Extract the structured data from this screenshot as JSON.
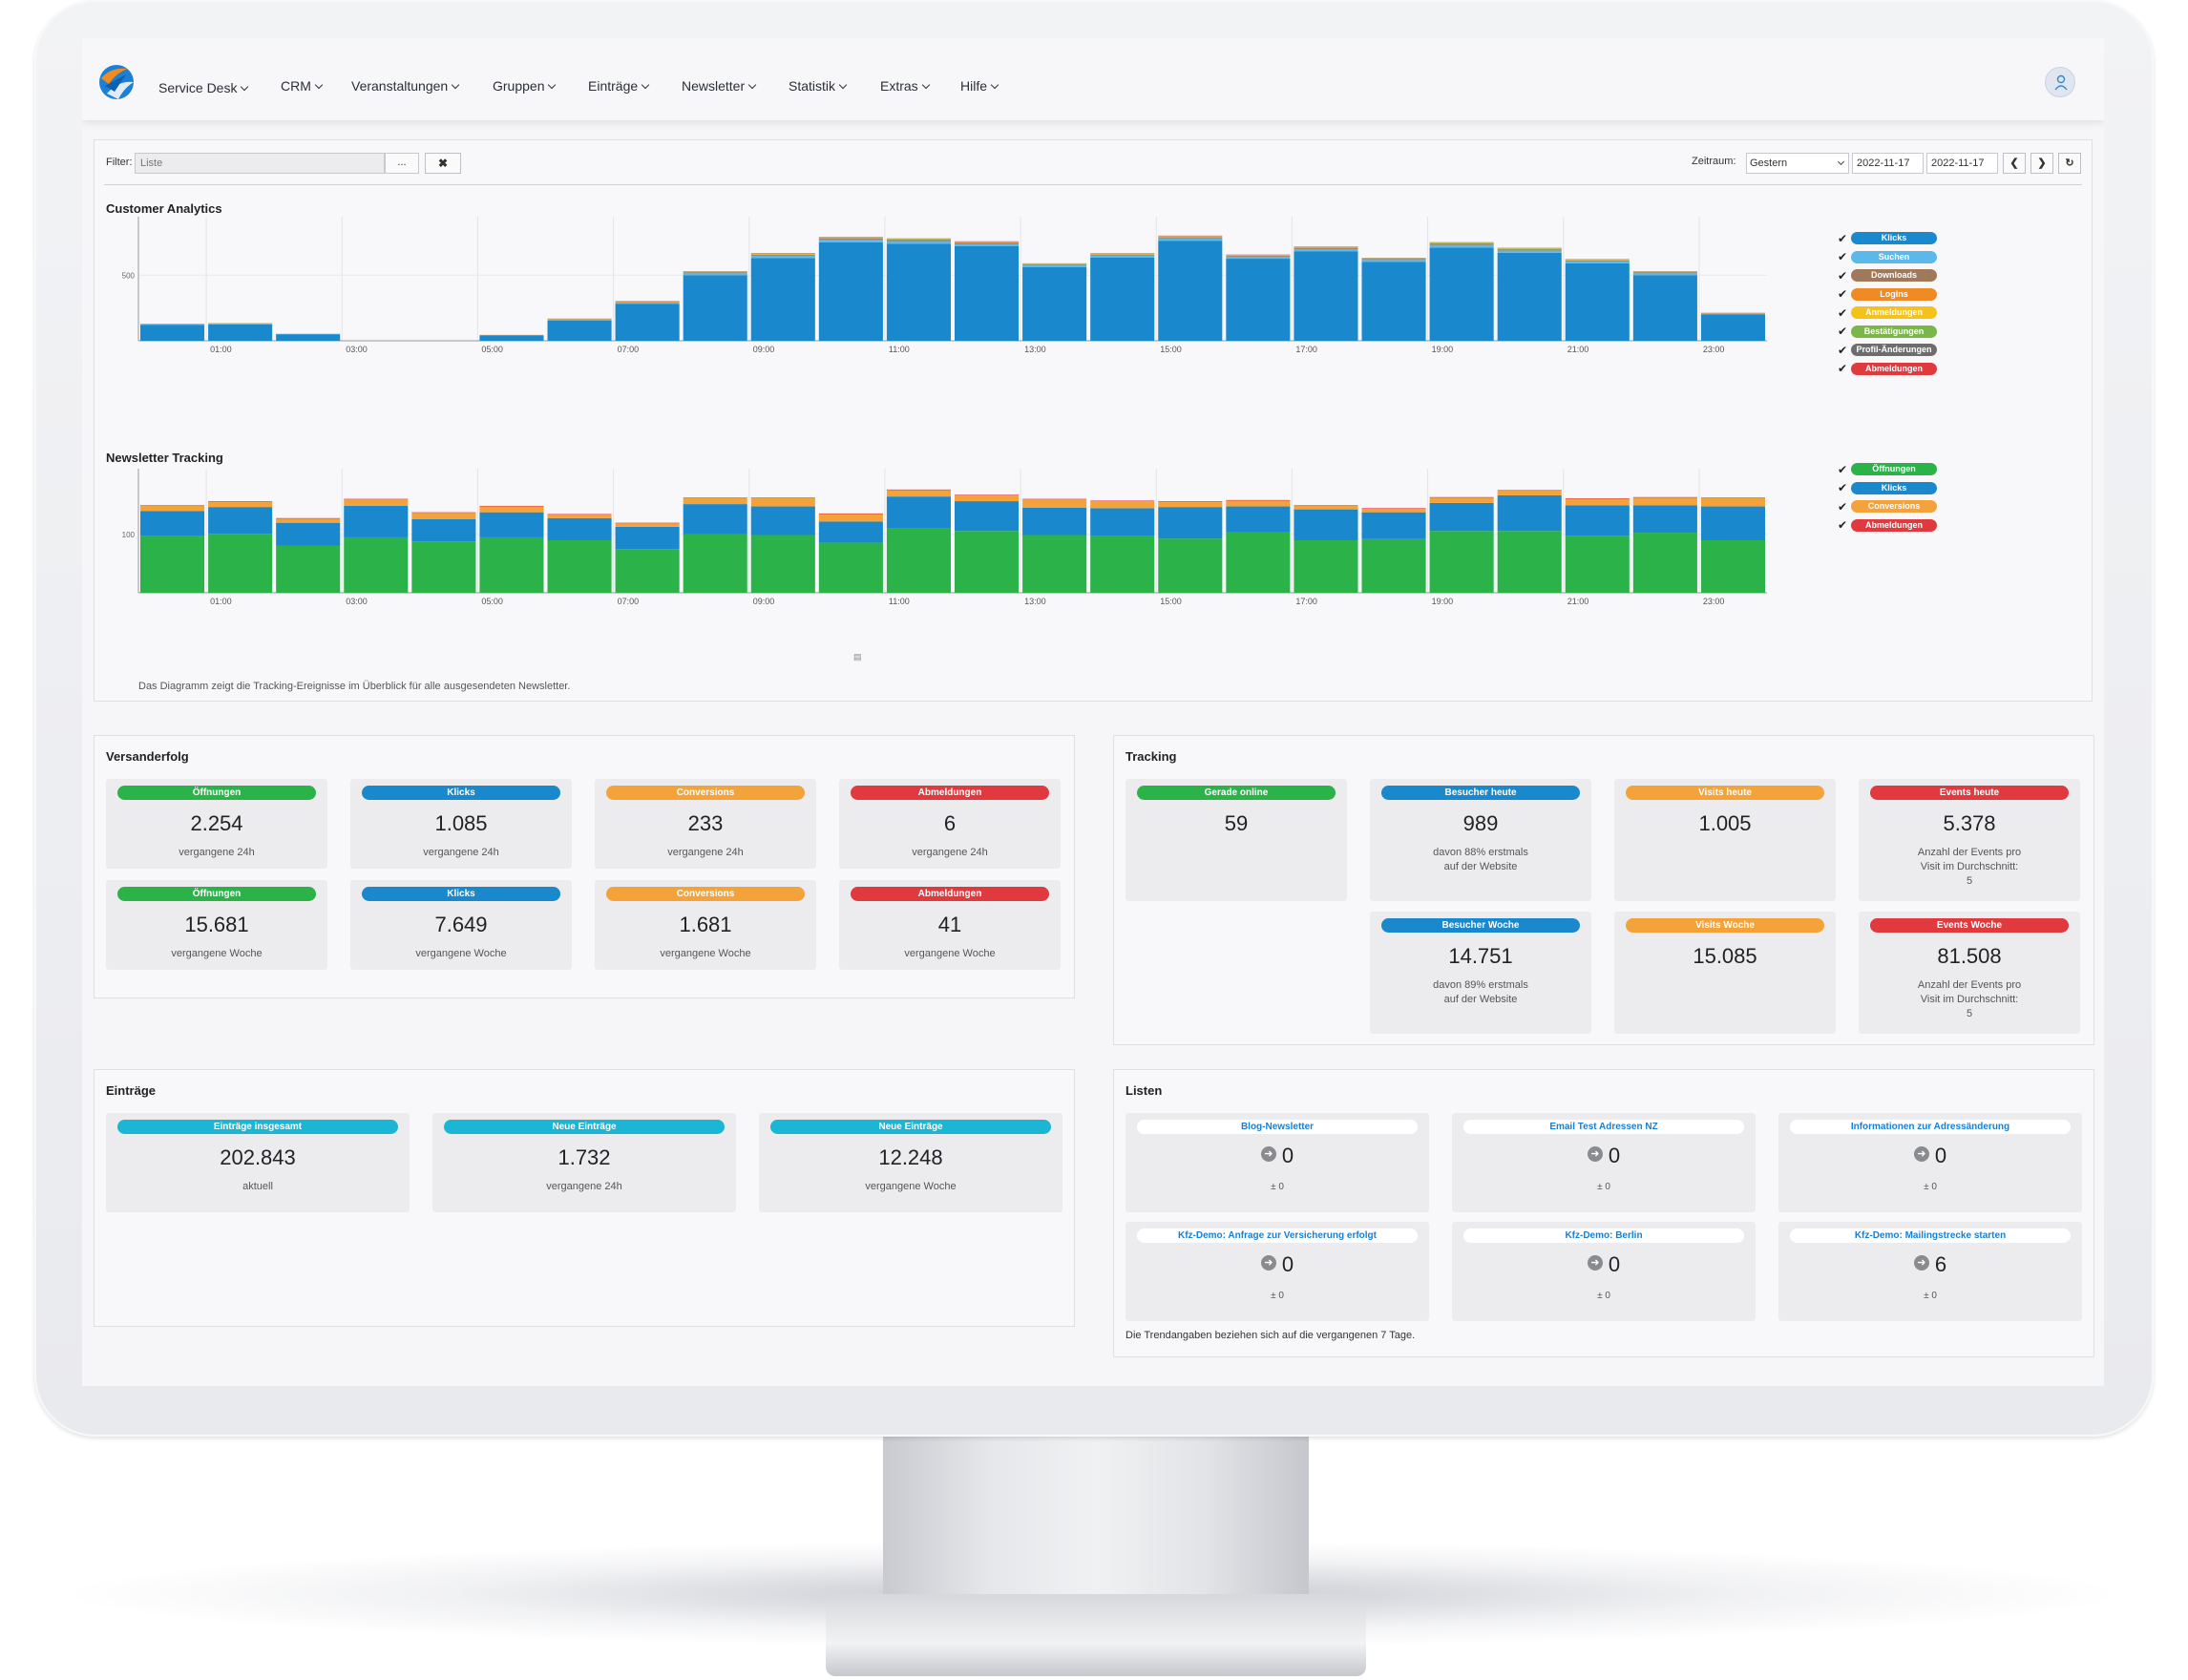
{
  "nav": {
    "items": [
      "Service Desk",
      "CRM",
      "Veranstaltungen",
      "Gruppen",
      "Einträge",
      "Newsletter",
      "Statistik",
      "Extras",
      "Hilfe"
    ]
  },
  "filter": {
    "label": "Filter:",
    "placeholder": "Liste",
    "more_label": "...",
    "clear_label": "✖",
    "zeitraum_label": "Zeitraum:",
    "zeitraum_value": "Gestern",
    "date_from": "2022-11-17",
    "date_to": "2022-11-17"
  },
  "customer_analytics": {
    "title": "Customer Analytics"
  },
  "newsletter_tracking": {
    "title": "Newsletter Tracking",
    "note": "Das Diagramm zeigt die Tracking-Ereignisse im Überblick für alle ausgesendeten Newsletter."
  },
  "chart_data": [
    {
      "type": "bar",
      "stacked": true,
      "title": "Customer Analytics",
      "categories": [
        "00:00",
        "01:00",
        "02:00",
        "03:00",
        "04:00",
        "05:00",
        "06:00",
        "07:00",
        "08:00",
        "09:00",
        "10:00",
        "11:00",
        "12:00",
        "13:00",
        "14:00",
        "15:00",
        "16:00",
        "17:00",
        "18:00",
        "19:00",
        "20:00",
        "21:00",
        "22:00",
        "23:00"
      ],
      "x_tick_labels": [
        "01:00",
        "03:00",
        "05:00",
        "07:00",
        "09:00",
        "11:00",
        "13:00",
        "15:00",
        "17:00",
        "19:00",
        "21:00",
        "23:00"
      ],
      "y_tick_labels": [
        "500"
      ],
      "ylim": [
        0,
        800
      ],
      "grid": true,
      "legend_position": "right",
      "series": [
        {
          "name": "Klicks",
          "color": "#1a88cc",
          "values": [
            120,
            125,
            50,
            0,
            0,
            40,
            155,
            280,
            500,
            630,
            750,
            740,
            720,
            560,
            635,
            760,
            625,
            680,
            600,
            710,
            670,
            590,
            500,
            200
          ]
        },
        {
          "name": "Suchen",
          "color": "#5ab8ea",
          "values": [
            4,
            4,
            2,
            0,
            0,
            3,
            6,
            10,
            14,
            18,
            20,
            20,
            18,
            14,
            16,
            20,
            16,
            18,
            16,
            20,
            18,
            16,
            14,
            6
          ]
        },
        {
          "name": "Downloads",
          "color": "#a0785a",
          "values": [
            2,
            2,
            1,
            0,
            0,
            1,
            3,
            4,
            6,
            7,
            8,
            7,
            7,
            6,
            6,
            8,
            6,
            7,
            6,
            8,
            7,
            6,
            6,
            3
          ]
        },
        {
          "name": "Logins",
          "color": "#f08a24",
          "values": [
            1,
            1,
            0,
            0,
            0,
            1,
            2,
            3,
            3,
            4,
            4,
            4,
            4,
            3,
            3,
            4,
            3,
            4,
            3,
            4,
            4,
            3,
            3,
            2
          ]
        },
        {
          "name": "Anmeldungen",
          "color": "#f4c21b",
          "values": [
            1,
            1,
            0,
            0,
            0,
            0,
            1,
            2,
            2,
            3,
            3,
            3,
            3,
            2,
            2,
            3,
            2,
            3,
            2,
            3,
            3,
            2,
            2,
            1
          ]
        },
        {
          "name": "Bestätigungen",
          "color": "#7ab648",
          "values": [
            1,
            1,
            0,
            0,
            0,
            0,
            1,
            2,
            2,
            3,
            3,
            3,
            3,
            2,
            2,
            3,
            2,
            3,
            2,
            3,
            3,
            2,
            2,
            1
          ]
        },
        {
          "name": "Profil-Änderungen",
          "color": "#6d6d6d",
          "values": [
            1,
            1,
            0,
            0,
            0,
            0,
            1,
            1,
            2,
            2,
            2,
            2,
            2,
            2,
            2,
            2,
            2,
            2,
            2,
            2,
            2,
            2,
            2,
            1
          ]
        },
        {
          "name": "Abmeldungen",
          "color": "#e0393e",
          "values": [
            0,
            0,
            0,
            0,
            0,
            0,
            0,
            1,
            1,
            1,
            1,
            1,
            1,
            1,
            1,
            1,
            1,
            1,
            1,
            1,
            1,
            1,
            1,
            0
          ]
        }
      ]
    },
    {
      "type": "bar",
      "stacked": true,
      "title": "Newsletter Tracking",
      "categories": [
        "00:00",
        "01:00",
        "02:00",
        "03:00",
        "04:00",
        "05:00",
        "06:00",
        "07:00",
        "08:00",
        "09:00",
        "10:00",
        "11:00",
        "12:00",
        "13:00",
        "14:00",
        "15:00",
        "16:00",
        "17:00",
        "18:00",
        "19:00",
        "20:00",
        "21:00",
        "22:00",
        "23:00"
      ],
      "x_tick_labels": [
        "01:00",
        "03:00",
        "05:00",
        "07:00",
        "09:00",
        "11:00",
        "13:00",
        "15:00",
        "17:00",
        "19:00",
        "21:00",
        "23:00"
      ],
      "y_tick_labels": [
        "100"
      ],
      "ylim": [
        0,
        180
      ],
      "grid": true,
      "legend_position": "right",
      "series": [
        {
          "name": "Öffnungen",
          "color": "#2bb34a",
          "values": [
            97,
            101,
            81,
            95,
            88,
            95,
            90,
            75,
            100,
            99,
            86,
            110,
            106,
            99,
            97,
            93,
            104,
            90,
            92,
            106,
            106,
            98,
            103,
            90
          ]
        },
        {
          "name": "Klicks",
          "color": "#1a88cc",
          "values": [
            43,
            46,
            39,
            54,
            38,
            43,
            38,
            38,
            52,
            49,
            36,
            55,
            51,
            47,
            48,
            54,
            44,
            53,
            46,
            48,
            61,
            52,
            47,
            58
          ]
        },
        {
          "name": "Conversions",
          "color": "#f4a23a",
          "values": [
            9,
            9,
            7,
            11,
            11,
            10,
            6,
            6,
            10,
            14,
            13,
            11,
            10,
            14,
            12,
            9,
            10,
            6,
            6,
            9,
            8,
            11,
            13,
            14
          ]
        },
        {
          "name": "Abmeldungen",
          "color": "#e0393e",
          "values": [
            1,
            1,
            1,
            1,
            1,
            1,
            1,
            1,
            1,
            1,
            1,
            1,
            1,
            1,
            1,
            1,
            1,
            1,
            1,
            1,
            1,
            1,
            1,
            1
          ]
        }
      ]
    }
  ],
  "versanderfolg": {
    "title": "Versanderfolg",
    "cards": [
      {
        "label": "Öffnungen",
        "color": "#2bb34a",
        "value": "2.254",
        "sub": "vergangene 24h"
      },
      {
        "label": "Klicks",
        "color": "#1a88cc",
        "value": "1.085",
        "sub": "vergangene 24h"
      },
      {
        "label": "Conversions",
        "color": "#f4a23a",
        "value": "233",
        "sub": "vergangene 24h"
      },
      {
        "label": "Abmeldungen",
        "color": "#e0393e",
        "value": "6",
        "sub": "vergangene 24h"
      },
      {
        "label": "Öffnungen",
        "color": "#2bb34a",
        "value": "15.681",
        "sub": "vergangene Woche"
      },
      {
        "label": "Klicks",
        "color": "#1a88cc",
        "value": "7.649",
        "sub": "vergangene Woche"
      },
      {
        "label": "Conversions",
        "color": "#f4a23a",
        "value": "1.681",
        "sub": "vergangene Woche"
      },
      {
        "label": "Abmeldungen",
        "color": "#e0393e",
        "value": "41",
        "sub": "vergangene Woche"
      }
    ]
  },
  "tracking": {
    "title": "Tracking",
    "cards": [
      {
        "label": "Gerade online",
        "color": "#2bb34a",
        "value": "59",
        "sub": ""
      },
      {
        "label": "Besucher heute",
        "color": "#1a88cc",
        "value": "989",
        "sub": "davon 88% erstmals\nauf der Website"
      },
      {
        "label": "Visits heute",
        "color": "#f4a23a",
        "value": "1.005",
        "sub": ""
      },
      {
        "label": "Events heute",
        "color": "#e0393e",
        "value": "5.378",
        "sub": "Anzahl der Events pro\nVisit im Durchschnitt:\n5"
      },
      {
        "label": "Besucher Woche",
        "color": "#1a88cc",
        "value": "14.751",
        "sub": "davon 89% erstmals\nauf der Website"
      },
      {
        "label": "Visits Woche",
        "color": "#f4a23a",
        "value": "15.085",
        "sub": ""
      },
      {
        "label": "Events Woche",
        "color": "#e0393e",
        "value": "81.508",
        "sub": "Anzahl der Events pro\nVisit im Durchschnitt:\n5"
      }
    ]
  },
  "eintraege": {
    "title": "Einträge",
    "cards": [
      {
        "label": "Einträge insgesamt",
        "color": "#1ab6d3",
        "value": "202.843",
        "sub": "aktuell"
      },
      {
        "label": "Neue Einträge",
        "color": "#1ab6d3",
        "value": "1.732",
        "sub": "vergangene 24h"
      },
      {
        "label": "Neue Einträge",
        "color": "#1ab6d3",
        "value": "12.248",
        "sub": "vergangene Woche"
      }
    ]
  },
  "listen": {
    "title": "Listen",
    "note": "Die Trendangaben beziehen sich auf die vergangenen 7 Tage.",
    "trend_icon": "➜",
    "cards": [
      {
        "label": "Blog-Newsletter",
        "value": "0",
        "trend": "± 0"
      },
      {
        "label": "Email Test Adressen NZ",
        "value": "0",
        "trend": "± 0"
      },
      {
        "label": "Informationen zur Adressänderung",
        "value": "0",
        "trend": "± 0"
      },
      {
        "label": "Kfz-Demo: Anfrage zur Versicherung erfolgt",
        "value": "0",
        "trend": "± 0"
      },
      {
        "label": "Kfz-Demo: Berlin",
        "value": "0",
        "trend": "± 0"
      },
      {
        "label": "Kfz-Demo: Mailingstrecke starten",
        "value": "6",
        "trend": "± 0"
      }
    ]
  }
}
